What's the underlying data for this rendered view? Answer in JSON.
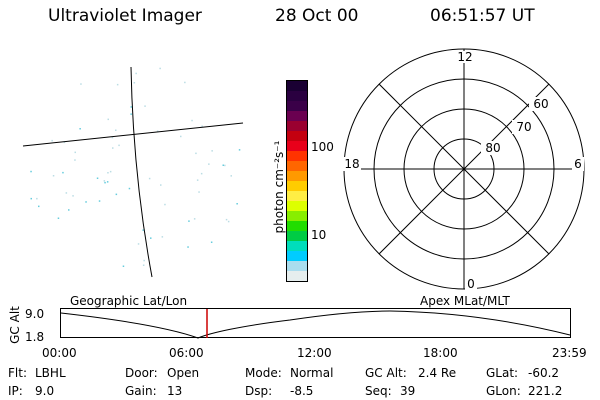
{
  "header": {
    "instrument": "Ultraviolet Imager",
    "date": "28 Oct 00",
    "time": "06:51:57 UT"
  },
  "colorbar": {
    "unit_label": "photon cm⁻²s⁻¹",
    "ticks": [
      "100",
      "10"
    ],
    "colors": [
      "#1a0033",
      "#2a0040",
      "#3a0048",
      "#6a0050",
      "#9a0030",
      "#c40010",
      "#e8001a",
      "#ff3300",
      "#ff6600",
      "#ff9900",
      "#ffcc00",
      "#ffee44",
      "#ddff00",
      "#88ee00",
      "#22dd00",
      "#00cc44",
      "#00ddbb",
      "#00ccff",
      "#aaddee",
      "#e6eeee"
    ]
  },
  "polar_grid": {
    "mlt_labels": {
      "top": "12",
      "left": "18",
      "right": "6",
      "bottom": "0"
    },
    "lat_labels": [
      "60",
      "70",
      "80"
    ]
  },
  "timeline": {
    "ylabel": "GC Alt",
    "y_ticks": [
      "9.0",
      "1.8"
    ],
    "left_title": "Geographic Lat/Lon",
    "right_title": "Apex MLat/MLT",
    "x_ticks": [
      "00:00",
      "06:00",
      "12:00",
      "18:00",
      "23:59"
    ],
    "marker_color": "#cc0000"
  },
  "status": {
    "filter_label": "Flt:",
    "filter_value": "LBHL",
    "ip_label": "IP:",
    "ip_value": "9.0",
    "door_label": "Door:",
    "door_value": "Open",
    "gain_label": "Gain:",
    "gain_value": "13",
    "mode_label": "Mode:",
    "mode_value": "Normal",
    "dsp_label": "Dsp:",
    "dsp_value": "-8.5",
    "gcalt_label": "GC Alt:",
    "gcalt_value": "2.4 Re",
    "seq_label": "Seq:",
    "seq_value": "39",
    "glat_label": "GLat:",
    "glat_value": "-60.2",
    "glon_label": "GLon:",
    "glon_value": "221.2"
  }
}
